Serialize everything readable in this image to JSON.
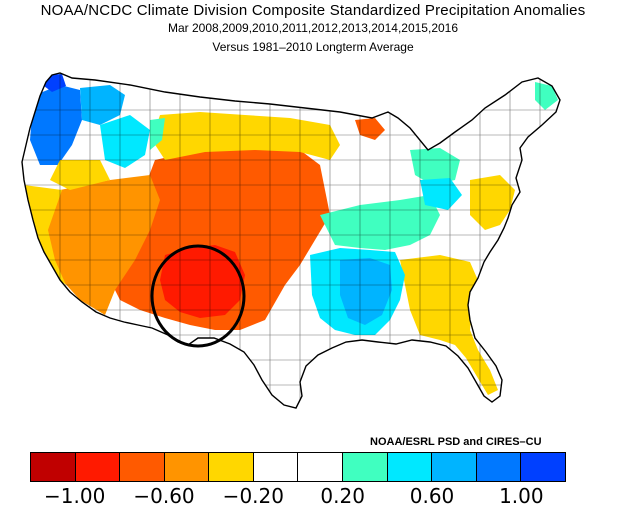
{
  "title_line1": "NOAA/NCDC Climate Division Composite Standardized Precipitation Anomalies",
  "title_line2": "Mar   2008,2009,2010,2011,2012,2013,2014,2015,2016",
  "title_line3": "Versus 1981–2010 Longterm Average",
  "credit": "NOAA/ESRL PSD and CIRES–CU",
  "colors": {
    "c1": "#c00000",
    "c2": "#ff1a00",
    "c3": "#ff5a00",
    "c4": "#ff9400",
    "c5": "#ffd700",
    "c6": "#ffffff",
    "c7": "#ffffff",
    "c8": "#40ffc0",
    "c9": "#00e8ff",
    "c10": "#00b4ff",
    "c11": "#0078ff",
    "c12": "#0040ff"
  },
  "scale_colors": [
    "#c00000",
    "#ff1a00",
    "#ff5a00",
    "#ff9400",
    "#ffd700",
    "#ffffff",
    "#ffffff",
    "#40ffc0",
    "#00e8ff",
    "#00b4ff",
    "#0078ff",
    "#0040ff"
  ],
  "tick_labels": [
    "−1.00",
    "−0.60",
    "−0.20",
    "0.20",
    "0.60",
    "1.00"
  ]
}
